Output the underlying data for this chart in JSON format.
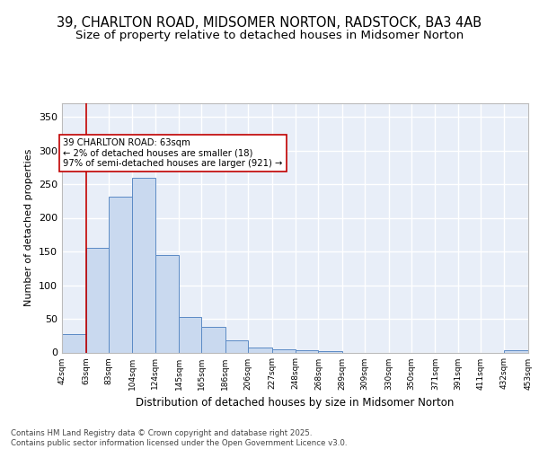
{
  "title1": "39, CHARLTON ROAD, MIDSOMER NORTON, RADSTOCK, BA3 4AB",
  "title2": "Size of property relative to detached houses in Midsomer Norton",
  "xlabel": "Distribution of detached houses by size in Midsomer Norton",
  "ylabel": "Number of detached properties",
  "categories": [
    "42sqm",
    "63sqm",
    "83sqm",
    "104sqm",
    "124sqm",
    "145sqm",
    "165sqm",
    "186sqm",
    "206sqm",
    "227sqm",
    "248sqm",
    "268sqm",
    "289sqm",
    "309sqm",
    "330sqm",
    "350sqm",
    "371sqm",
    "391sqm",
    "411sqm",
    "432sqm",
    "453sqm"
  ],
  "hist_edges": [
    42,
    63,
    83,
    104,
    124,
    145,
    165,
    186,
    206,
    227,
    248,
    268,
    289,
    309,
    330,
    350,
    371,
    391,
    411,
    432,
    453
  ],
  "hist_counts": [
    28,
    155,
    232,
    260,
    145,
    53,
    38,
    18,
    8,
    5,
    3,
    2,
    0,
    0,
    0,
    0,
    0,
    0,
    0,
    4
  ],
  "bar_color": "#c9d9ef",
  "bar_edge_color": "#5b8ac5",
  "vline_x": 63,
  "vline_color": "#c00000",
  "annotation_text": "39 CHARLTON ROAD: 63sqm\n← 2% of detached houses are smaller (18)\n97% of semi-detached houses are larger (921) →",
  "annotation_box_color": "#c00000",
  "ylim": [
    0,
    370
  ],
  "yticks": [
    0,
    50,
    100,
    150,
    200,
    250,
    300,
    350
  ],
  "footer": "Contains HM Land Registry data © Crown copyright and database right 2025.\nContains public sector information licensed under the Open Government Licence v3.0.",
  "bg_color": "#e8eef8",
  "grid_color": "#ffffff",
  "title_fontsize": 10.5,
  "subtitle_fontsize": 9.5
}
